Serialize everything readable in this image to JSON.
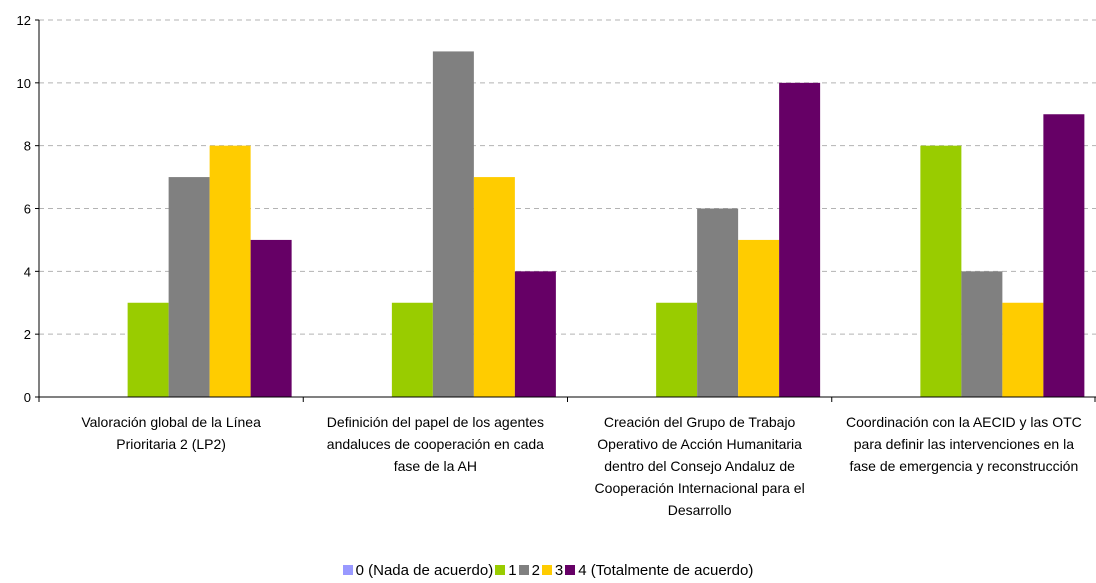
{
  "chart_data": {
    "type": "bar",
    "categories": [
      "Valoración global de la Línea\nPrioritaria 2 (LP2)",
      "Definición del papel de los agentes\nandaluces de cooperación en cada\nfase de la AH",
      "Creación del Grupo de Trabajo\nOperativo de Acción Humanitaria\ndentro del Consejo Andaluz de\nCooperación Internacional para el\nDesarrollo",
      "Coordinación con la AECID y las OTC\npara definir las intervenciones en la\nfase de emergencia y reconstrucción"
    ],
    "series": [
      {
        "name": "0 (Nada de acuerdo)",
        "color": "#9999ff",
        "values": [
          0,
          0,
          0,
          0
        ]
      },
      {
        "name": "1",
        "color": "#99cc00",
        "values": [
          3,
          3,
          3,
          8
        ]
      },
      {
        "name": "2",
        "color": "#808080",
        "values": [
          7,
          11,
          6,
          4
        ]
      },
      {
        "name": "3",
        "color": "#ffcc00",
        "values": [
          8,
          7,
          5,
          3
        ]
      },
      {
        "name": "4 (Totalmente de acuerdo)",
        "color": "#660066",
        "values": [
          5,
          4,
          10,
          9
        ]
      }
    ],
    "yticks": [
      0,
      2,
      4,
      6,
      8,
      10,
      12
    ],
    "ylim": [
      0,
      12
    ],
    "grid": true,
    "legend_position": "bottom"
  }
}
